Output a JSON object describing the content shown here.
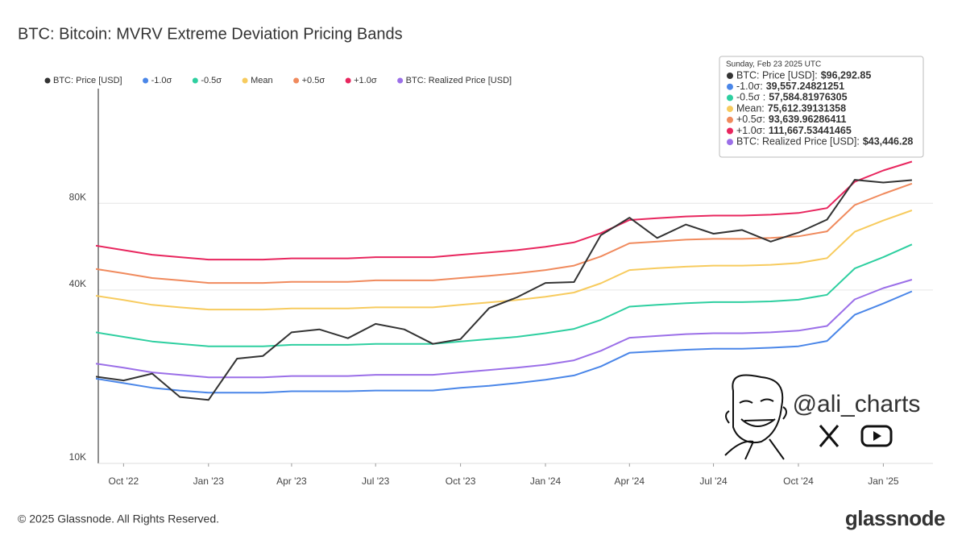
{
  "chart_data": {
    "type": "line",
    "title": "BTC: Bitcoin: MVRV Extreme Deviation Pricing Bands",
    "log_y": true,
    "grid": true,
    "x": [
      "2022-09",
      "2022-10",
      "2022-11",
      "2022-12",
      "2023-01",
      "2023-02",
      "2023-03",
      "2023-04",
      "2023-05",
      "2023-06",
      "2023-07",
      "2023-08",
      "2023-09",
      "2023-10",
      "2023-11",
      "2023-12",
      "2024-01",
      "2024-02",
      "2024-03",
      "2024-04",
      "2024-05",
      "2024-06",
      "2024-07",
      "2024-08",
      "2024-09",
      "2024-10",
      "2024-11",
      "2024-12",
      "2025-01",
      "2025-02"
    ],
    "xlim": [
      "2022-09",
      "2025-03"
    ],
    "xticks": [
      {
        "value": "2022-10",
        "label": "Oct '22"
      },
      {
        "value": "2023-01",
        "label": "Jan '23"
      },
      {
        "value": "2023-04",
        "label": "Apr '23"
      },
      {
        "value": "2023-07",
        "label": "Jul '23"
      },
      {
        "value": "2023-10",
        "label": "Oct '23"
      },
      {
        "value": "2024-01",
        "label": "Jan '24"
      },
      {
        "value": "2024-04",
        "label": "Apr '24"
      },
      {
        "value": "2024-07",
        "label": "Jul '24"
      },
      {
        "value": "2024-10",
        "label": "Oct '24"
      },
      {
        "value": "2025-01",
        "label": "Jan '25"
      }
    ],
    "ylim": [
      10000,
      200000
    ],
    "yticks": [
      {
        "value": 10000,
        "label": "10K"
      },
      {
        "value": 40000,
        "label": "40K"
      },
      {
        "value": 80000,
        "label": "80K"
      }
    ],
    "series": [
      {
        "name": "BTC: Price [USD]",
        "color": "#333333",
        "width": 2,
        "values": [
          20000,
          19400,
          20500,
          17000,
          16600,
          23100,
          23600,
          28500,
          29200,
          27200,
          30500,
          29200,
          26000,
          27000,
          34600,
          37700,
          42300,
          42600,
          62000,
          71300,
          60600,
          67500,
          62700,
          64600,
          58900,
          63300,
          70200,
          96500,
          94400,
          96292.85
        ]
      },
      {
        "name": "-1.0σ",
        "color": "#4a86e8",
        "width": 2,
        "values": [
          19700,
          19000,
          18300,
          17900,
          17600,
          17600,
          17600,
          17800,
          17800,
          17800,
          17900,
          17900,
          17900,
          18300,
          18600,
          19000,
          19500,
          20200,
          21700,
          24200,
          24500,
          24800,
          25000,
          25000,
          25200,
          25500,
          26600,
          32800,
          35900,
          39557.24821251
        ]
      },
      {
        "name": "-0.5σ",
        "color": "#2ecfa0",
        "width": 2,
        "values": [
          28500,
          27500,
          26500,
          26000,
          25500,
          25500,
          25500,
          25800,
          25800,
          25800,
          26000,
          26000,
          26000,
          26500,
          27000,
          27500,
          28300,
          29300,
          31500,
          35000,
          35500,
          36000,
          36300,
          36300,
          36500,
          37000,
          38500,
          47500,
          52000,
          57584.81976305
        ]
      },
      {
        "name": "Mean",
        "color": "#f7cb5e",
        "width": 2,
        "values": [
          38200,
          36900,
          35500,
          34800,
          34200,
          34200,
          34200,
          34500,
          34500,
          34500,
          34800,
          34800,
          34800,
          35500,
          36200,
          36900,
          37900,
          39200,
          42200,
          46900,
          47600,
          48200,
          48600,
          48600,
          48900,
          49600,
          51600,
          63700,
          69700,
          75612.39131358
        ]
      },
      {
        "name": "+0.5σ",
        "color": "#f08a5d",
        "width": 2,
        "values": [
          47300,
          45700,
          44000,
          43200,
          42300,
          42300,
          42300,
          42700,
          42700,
          42700,
          43200,
          43200,
          43200,
          44000,
          44800,
          45700,
          46900,
          48600,
          52300,
          58100,
          58900,
          59800,
          60200,
          60200,
          60600,
          61400,
          63900,
          78900,
          86300,
          93639.96286411
        ]
      },
      {
        "name": "+1.0σ",
        "color": "#e8265e",
        "width": 2,
        "values": [
          57000,
          55000,
          53000,
          52000,
          51000,
          51000,
          51000,
          51500,
          51500,
          51500,
          52000,
          52000,
          52000,
          53000,
          54000,
          55000,
          56500,
          58500,
          63000,
          70000,
          71000,
          72000,
          72500,
          72500,
          73000,
          74000,
          77000,
          95000,
          104000,
          111667.53441465
        ]
      },
      {
        "name": "BTC: Realized Price [USD]",
        "color": "#9b6fe8",
        "width": 2,
        "values": [
          22200,
          21500,
          20700,
          20300,
          19900,
          19900,
          19900,
          20100,
          20100,
          20100,
          20300,
          20300,
          20300,
          20700,
          21100,
          21500,
          22000,
          22800,
          24600,
          27300,
          27700,
          28100,
          28300,
          28300,
          28500,
          28900,
          30000,
          37100,
          40600,
          43446.28
        ]
      }
    ],
    "tooltip": {
      "title": "Sunday, Feb 23 2025 UTC",
      "rows": [
        {
          "label": "BTC: Price [USD]:",
          "value": "$96,292.85"
        },
        {
          "label": "-1.0σ:",
          "value": "39,557.24821251"
        },
        {
          "label": "-0.5σ :",
          "value": "57,584.81976305"
        },
        {
          "label": "Mean:",
          "value": "75,612.39131358"
        },
        {
          "label": "+0.5σ:",
          "value": "93,639.96286411"
        },
        {
          "label": "+1.0σ:",
          "value": "111,667.53441465"
        },
        {
          "label": "BTC: Realized Price [USD]:",
          "value": "$43,446.28"
        }
      ]
    },
    "watermark": "@ali_charts",
    "footer": "© 2025 Glassnode. All Rights Reserved.",
    "brand": "glassnode"
  }
}
